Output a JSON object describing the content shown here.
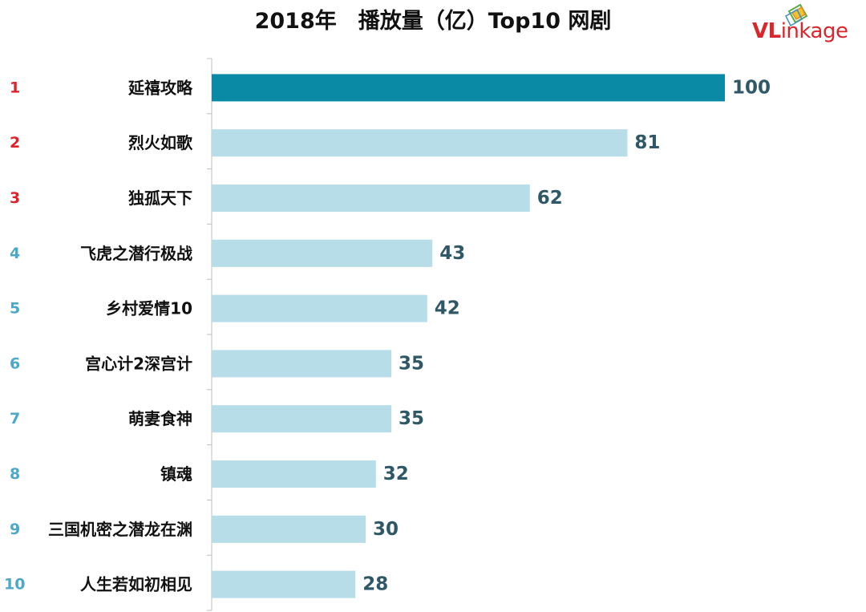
{
  "title": "2018年　播放量（亿）Top10 网剧",
  "brand": {
    "part1": "VL",
    "part2": "inkage",
    "color": "#d9262b"
  },
  "colors": {
    "top_bar": "#0a8aa5",
    "other_bar": "#b6dde8",
    "top_rank": "#e0202a",
    "other_rank": "#4ba8c8",
    "value_text": "#2e5866",
    "label_text": "#111111",
    "axis": "#bfbfbf"
  },
  "chart_data": {
    "type": "bar",
    "orientation": "horizontal",
    "title": "2018年　播放量（亿）Top10 网剧",
    "unit": "亿",
    "xlim": [
      0,
      100
    ],
    "ranks": [
      "1",
      "2",
      "3",
      "4",
      "5",
      "6",
      "7",
      "8",
      "9",
      "10"
    ],
    "categories": [
      "延禧攻略",
      "烈火如歌",
      "独孤天下",
      "飞虎之潜行极战",
      "乡村爱情10",
      "宫心计2深宫计",
      "萌妻食神",
      "镇魂",
      "三国机密之潜龙在渊",
      "人生若如初相见"
    ],
    "values": [
      100,
      81,
      62,
      43,
      42,
      35,
      35,
      32,
      30,
      28
    ],
    "value_labels": [
      "100",
      "81",
      "62",
      "43",
      "42",
      "35",
      "35",
      "32",
      "30",
      "28"
    ],
    "highlight_top": 3
  }
}
